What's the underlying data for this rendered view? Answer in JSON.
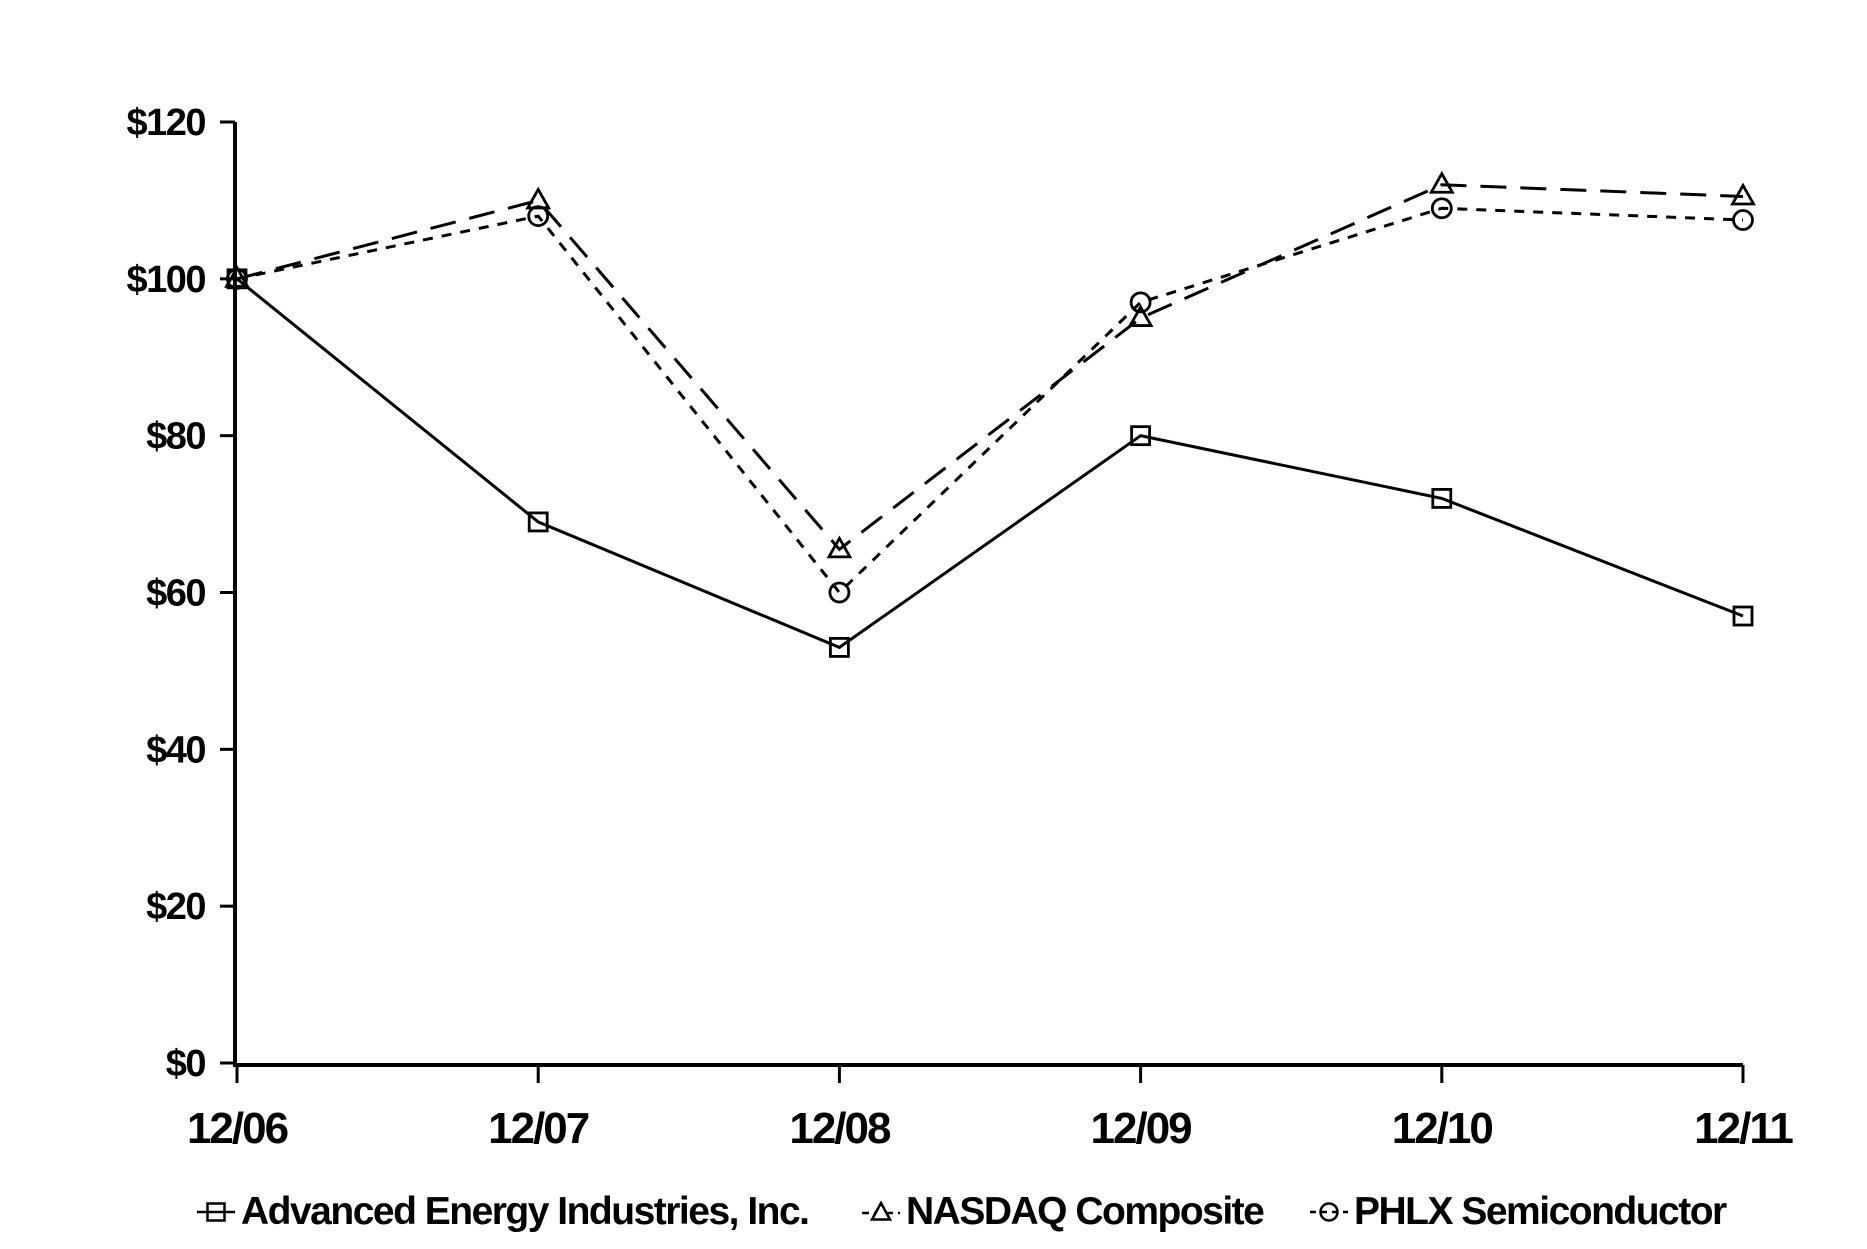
{
  "chart_data": {
    "type": "line",
    "title": "",
    "xlabel": "",
    "ylabel": "",
    "x_categories": [
      "12/06",
      "12/07",
      "12/08",
      "12/09",
      "12/10",
      "12/11"
    ],
    "y_tick_labels": [
      "$0",
      "$20",
      "$40",
      "$60",
      "$80",
      "$100",
      "$120"
    ],
    "ylim": [
      0,
      120
    ],
    "y_tick_step": 20,
    "grid": false,
    "legend_position": "bottom",
    "series": [
      {
        "name": "Advanced Energy Industries, Inc.",
        "marker": "square",
        "line_style": "solid",
        "values": [
          100,
          69,
          53,
          80,
          72,
          57
        ]
      },
      {
        "name": "NASDAQ Composite",
        "marker": "triangle",
        "line_style": "long-dash",
        "values": [
          100,
          110,
          65.5,
          95,
          112,
          110.5
        ]
      },
      {
        "name": "PHLX Semiconductor",
        "marker": "circle",
        "line_style": "short-dash",
        "values": [
          100,
          108,
          60,
          97,
          109,
          107.5
        ]
      }
    ],
    "colors": {
      "line": "#000000",
      "text": "#000000",
      "background": "#ffffff"
    }
  }
}
